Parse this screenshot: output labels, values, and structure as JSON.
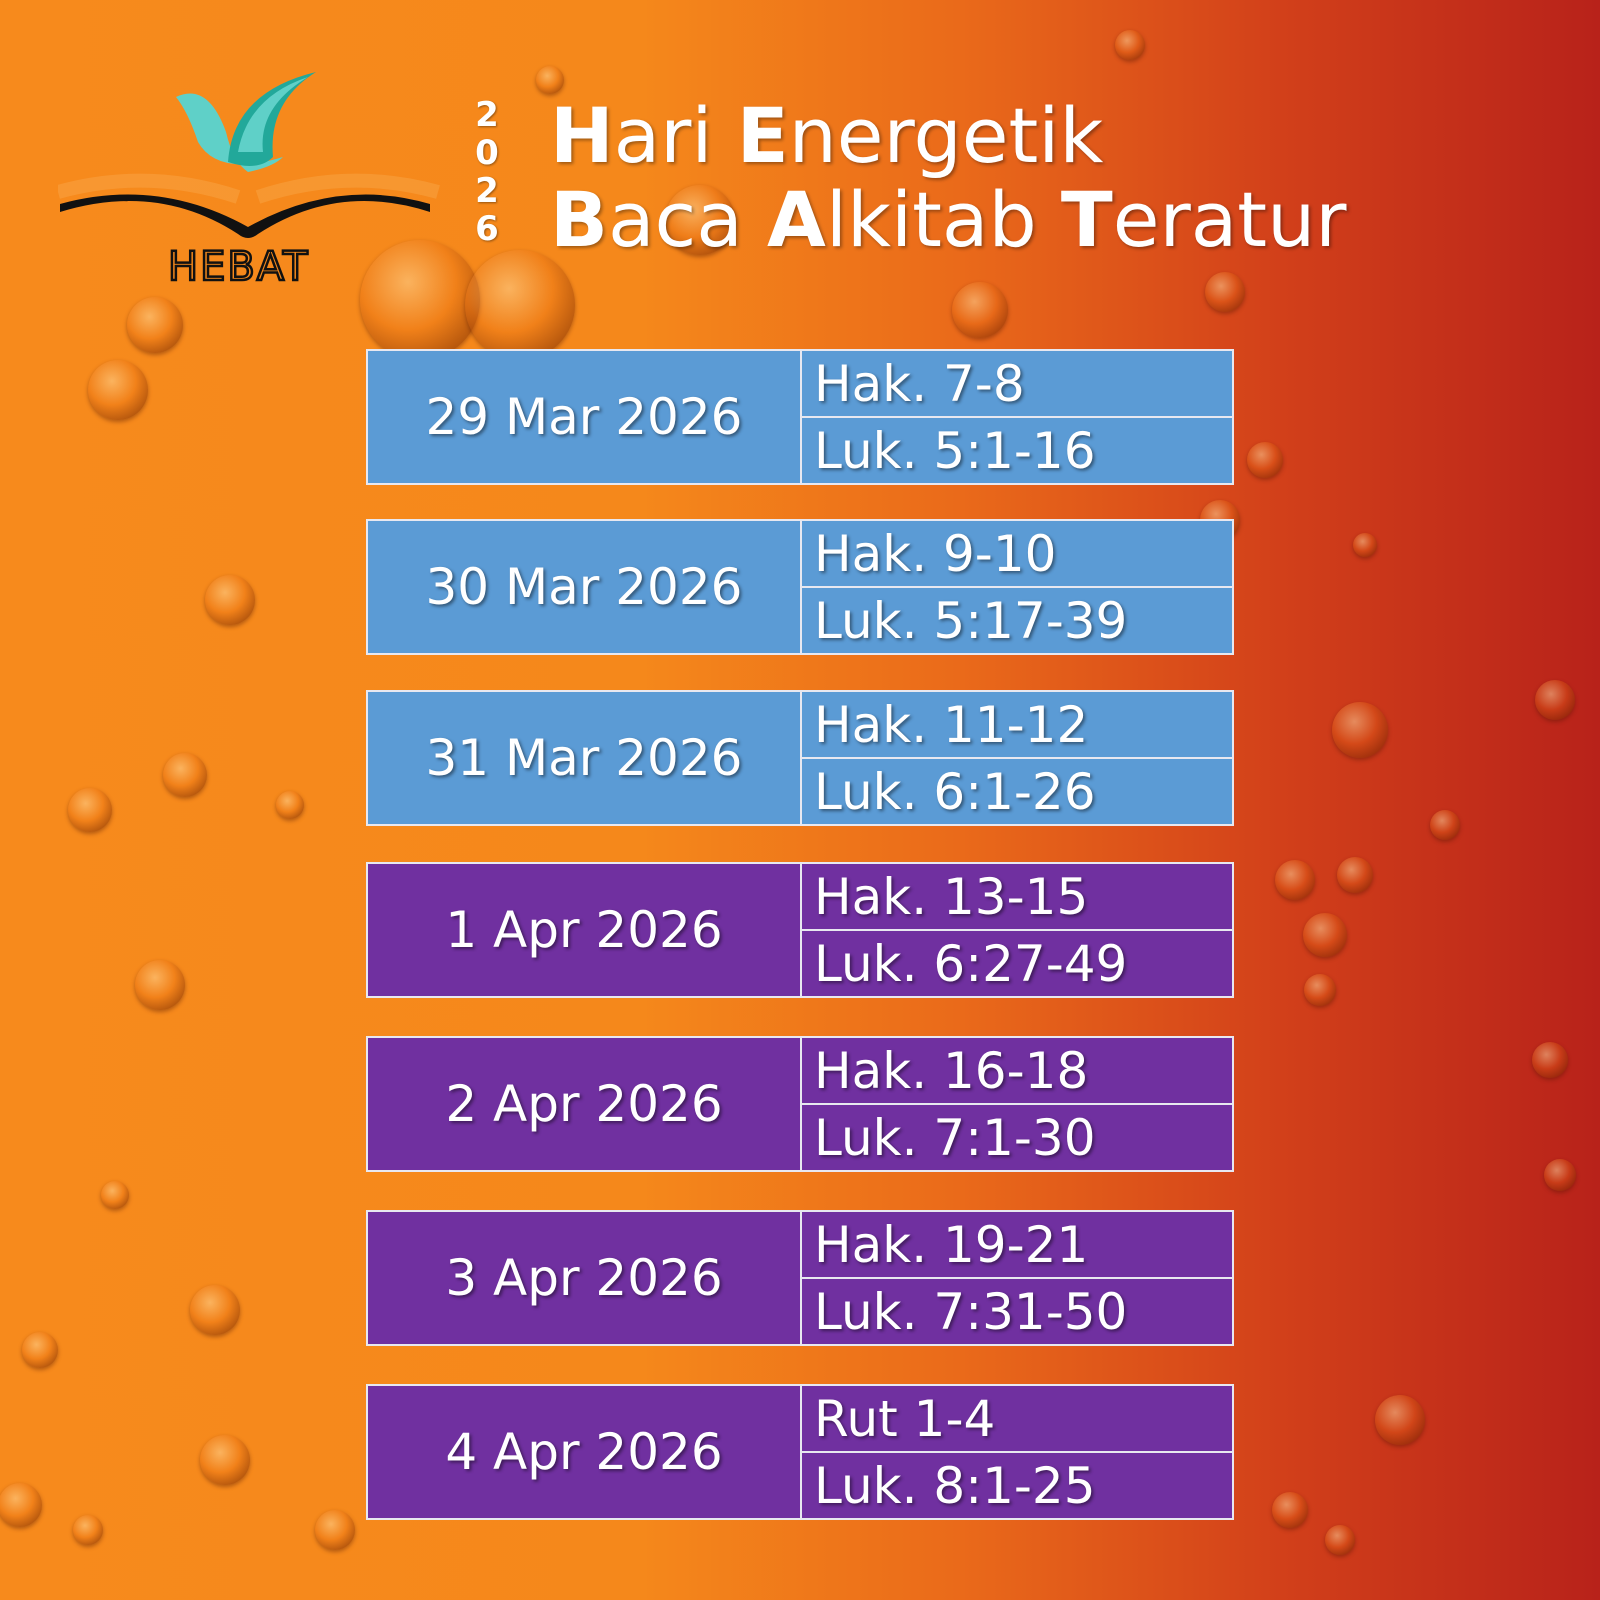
{
  "logo": {
    "text": "HEBAT",
    "colors": {
      "bird_light": "#5fd0c8",
      "bird_dark": "#22a89a",
      "book": "#111111"
    }
  },
  "year_vertical": [
    "2",
    "0",
    "2",
    "6"
  ],
  "title": {
    "line1": [
      {
        "cap": "H",
        "rest": "ari "
      },
      {
        "cap": "E",
        "rest": "nergetik"
      }
    ],
    "line2": [
      {
        "cap": "B",
        "rest": "aca "
      },
      {
        "cap": "A",
        "rest": "lkitab "
      },
      {
        "cap": "T",
        "rest": "eratur"
      }
    ]
  },
  "colors": {
    "march": "#5b9bd5",
    "april": "#7030a0"
  },
  "schedule": [
    {
      "date": "29 Mar 2026",
      "readings": [
        "Hak. 7-8",
        "Luk. 5:1-16"
      ],
      "color": "#5b9bd5"
    },
    {
      "date": "30 Mar 2026",
      "readings": [
        "Hak. 9-10",
        "Luk. 5:17-39"
      ],
      "color": "#5b9bd5"
    },
    {
      "date": "31 Mar 2026",
      "readings": [
        "Hak. 11-12",
        "Luk. 6:1-26"
      ],
      "color": "#5b9bd5"
    },
    {
      "date": "1 Apr 2026",
      "readings": [
        "Hak. 13-15",
        "Luk. 6:27-49"
      ],
      "color": "#7030a0"
    },
    {
      "date": "2 Apr 2026",
      "readings": [
        "Hak. 16-18",
        "Luk. 7:1-30"
      ],
      "color": "#7030a0"
    },
    {
      "date": "3 Apr 2026",
      "readings": [
        "Hak. 19-21",
        "Luk. 7:31-50"
      ],
      "color": "#7030a0"
    },
    {
      "date": "4 Apr 2026",
      "readings": [
        "Rut 1-4",
        "Luk. 8:1-25"
      ],
      "color": "#7030a0"
    }
  ]
}
